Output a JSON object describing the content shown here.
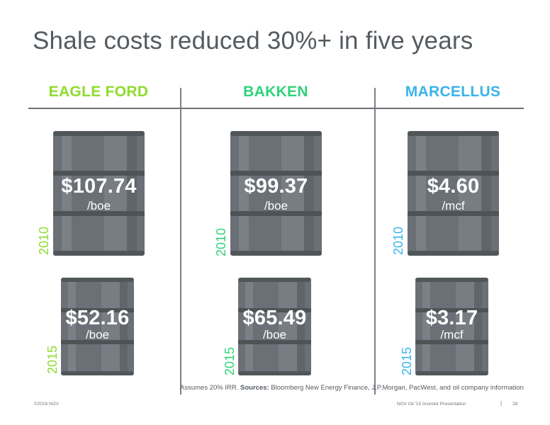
{
  "slide": {
    "title": "Shale costs reduced 30%+ in five years",
    "columns": [
      {
        "name": "EAGLE FORD",
        "color": "#8ddc2c",
        "barrels": [
          {
            "year": "2010",
            "price": "$107.74",
            "unit": "/boe"
          },
          {
            "year": "2015",
            "price": "$52.16",
            "unit": "/boe"
          }
        ]
      },
      {
        "name": "BAKKEN",
        "color": "#2fd37a",
        "barrels": [
          {
            "year": "2010",
            "price": "$99.37",
            "unit": "/boe"
          },
          {
            "year": "2015",
            "price": "$65.49",
            "unit": "/boe"
          }
        ]
      },
      {
        "name": "MARCELLUS",
        "color": "#3bb3ea",
        "barrels": [
          {
            "year": "2010",
            "price": "$4.60",
            "unit": "/mcf"
          },
          {
            "year": "2015",
            "price": "$3.17",
            "unit": "/mcf"
          }
        ]
      }
    ],
    "footnote_prefix": "Assumes 20% IRR. ",
    "footnote_sources_label": "Sources:",
    "footnote_sources": " Bloomberg New Energy Finance, J.P.Morgan, PacWest, and oil company information"
  },
  "footer": {
    "copyright": "©2016 NOV",
    "presentation": "NOV Oil '15 Investor Presentation",
    "separator": "|",
    "page_number": "28"
  }
}
